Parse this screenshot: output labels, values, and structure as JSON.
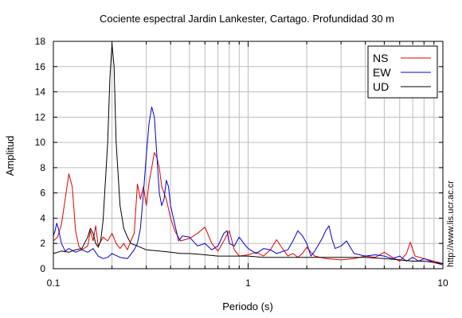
{
  "chart_data": {
    "type": "line",
    "title": "Cociente espectral Jardin Lankester, Cartago. Profundidad 30 m",
    "xlabel": "Periodo (s)",
    "ylabel": "Amplitud",
    "xscale": "log",
    "xlim": [
      0.1,
      10
    ],
    "ylim": [
      0,
      18
    ],
    "x_ticks": [
      0.1,
      1,
      10
    ],
    "x_tick_labels": [
      "0.1",
      "1",
      "10"
    ],
    "y_ticks": [
      0,
      2,
      4,
      6,
      8,
      10,
      12,
      14,
      16,
      18
    ],
    "y_tick_labels": [
      "0",
      "2",
      "4",
      "6",
      "8",
      "10",
      "12",
      "14",
      "16",
      "18"
    ],
    "grid": true,
    "legend_position": "top-right",
    "watermark": "http://www.lis.ucr.ac.cr",
    "series": [
      {
        "name": "NS",
        "color": "#e00000",
        "points": [
          [
            0.1,
            2.2
          ],
          [
            0.105,
            2.5
          ],
          [
            0.11,
            3.5
          ],
          [
            0.115,
            5.5
          ],
          [
            0.12,
            7.5
          ],
          [
            0.125,
            6.5
          ],
          [
            0.13,
            3.0
          ],
          [
            0.135,
            1.8
          ],
          [
            0.14,
            1.5
          ],
          [
            0.15,
            1.8
          ],
          [
            0.155,
            3.0
          ],
          [
            0.16,
            2.2
          ],
          [
            0.165,
            3.4
          ],
          [
            0.17,
            1.8
          ],
          [
            0.18,
            2.5
          ],
          [
            0.19,
            2.2
          ],
          [
            0.2,
            2.8
          ],
          [
            0.21,
            2.0
          ],
          [
            0.22,
            1.6
          ],
          [
            0.23,
            2.0
          ],
          [
            0.24,
            1.5
          ],
          [
            0.25,
            2.2
          ],
          [
            0.26,
            2.8
          ],
          [
            0.27,
            6.7
          ],
          [
            0.28,
            5.5
          ],
          [
            0.29,
            6.5
          ],
          [
            0.3,
            5.0
          ],
          [
            0.31,
            6.8
          ],
          [
            0.32,
            8.0
          ],
          [
            0.33,
            9.2
          ],
          [
            0.34,
            8.8
          ],
          [
            0.35,
            8.0
          ],
          [
            0.36,
            6.5
          ],
          [
            0.38,
            5.5
          ],
          [
            0.4,
            4.0
          ],
          [
            0.42,
            3.0
          ],
          [
            0.45,
            2.2
          ],
          [
            0.5,
            2.4
          ],
          [
            0.55,
            2.8
          ],
          [
            0.6,
            3.3
          ],
          [
            0.65,
            2.0
          ],
          [
            0.7,
            1.4
          ],
          [
            0.75,
            2.2
          ],
          [
            0.8,
            3.0
          ],
          [
            0.85,
            1.5
          ],
          [
            0.9,
            1.0
          ],
          [
            1.0,
            1.1
          ],
          [
            1.1,
            1.3
          ],
          [
            1.2,
            1.0
          ],
          [
            1.3,
            1.5
          ],
          [
            1.4,
            2.3
          ],
          [
            1.5,
            1.6
          ],
          [
            1.6,
            1.0
          ],
          [
            1.7,
            1.2
          ],
          [
            1.8,
            0.9
          ],
          [
            1.9,
            1.2
          ],
          [
            2.0,
            1.7
          ],
          [
            2.1,
            1.3
          ],
          [
            2.2,
            1.0
          ],
          [
            2.5,
            0.8
          ],
          [
            3.0,
            0.7
          ],
          [
            3.5,
            0.8
          ],
          [
            4.0,
            1.0
          ],
          [
            4.5,
            0.9
          ],
          [
            5.0,
            1.3
          ],
          [
            5.5,
            0.9
          ],
          [
            6.0,
            0.6
          ],
          [
            6.5,
            1.2
          ],
          [
            6.8,
            2.1
          ],
          [
            7.2,
            1.0
          ],
          [
            8.0,
            0.8
          ],
          [
            9.0,
            0.6
          ],
          [
            10.0,
            0.4
          ]
        ]
      },
      {
        "name": "EW",
        "color": "#0000cc",
        "points": [
          [
            0.1,
            2.6
          ],
          [
            0.102,
            3.0
          ],
          [
            0.104,
            3.6
          ],
          [
            0.106,
            3.2
          ],
          [
            0.11,
            2.0
          ],
          [
            0.115,
            1.4
          ],
          [
            0.12,
            1.6
          ],
          [
            0.13,
            1.3
          ],
          [
            0.14,
            1.5
          ],
          [
            0.15,
            1.3
          ],
          [
            0.16,
            1.6
          ],
          [
            0.17,
            1.0
          ],
          [
            0.18,
            0.8
          ],
          [
            0.19,
            0.9
          ],
          [
            0.2,
            1.2
          ],
          [
            0.22,
            0.9
          ],
          [
            0.24,
            0.8
          ],
          [
            0.26,
            1.5
          ],
          [
            0.27,
            2.0
          ],
          [
            0.28,
            3.2
          ],
          [
            0.29,
            6.0
          ],
          [
            0.3,
            9.0
          ],
          [
            0.31,
            11.5
          ],
          [
            0.32,
            12.8
          ],
          [
            0.33,
            12.0
          ],
          [
            0.34,
            9.0
          ],
          [
            0.35,
            6.0
          ],
          [
            0.36,
            5.0
          ],
          [
            0.37,
            5.5
          ],
          [
            0.38,
            7.0
          ],
          [
            0.39,
            6.5
          ],
          [
            0.4,
            5.0
          ],
          [
            0.42,
            3.5
          ],
          [
            0.44,
            2.2
          ],
          [
            0.46,
            2.6
          ],
          [
            0.5,
            2.5
          ],
          [
            0.55,
            1.8
          ],
          [
            0.6,
            2.0
          ],
          [
            0.65,
            1.5
          ],
          [
            0.7,
            1.8
          ],
          [
            0.75,
            2.8
          ],
          [
            0.78,
            3.0
          ],
          [
            0.8,
            2.0
          ],
          [
            0.85,
            1.8
          ],
          [
            0.9,
            2.5
          ],
          [
            0.95,
            2.0
          ],
          [
            1.0,
            1.6
          ],
          [
            1.1,
            1.2
          ],
          [
            1.2,
            1.6
          ],
          [
            1.3,
            1.5
          ],
          [
            1.4,
            1.2
          ],
          [
            1.6,
            1.5
          ],
          [
            1.7,
            2.2
          ],
          [
            1.8,
            3.0
          ],
          [
            1.9,
            2.6
          ],
          [
            2.0,
            2.0
          ],
          [
            2.1,
            1.0
          ],
          [
            2.2,
            1.4
          ],
          [
            2.4,
            2.4
          ],
          [
            2.5,
            3.0
          ],
          [
            2.6,
            3.4
          ],
          [
            2.7,
            2.3
          ],
          [
            2.8,
            1.6
          ],
          [
            3.0,
            1.8
          ],
          [
            3.2,
            2.2
          ],
          [
            3.5,
            1.2
          ],
          [
            4.0,
            1.0
          ],
          [
            4.5,
            1.1
          ],
          [
            5.0,
            1.0
          ],
          [
            5.5,
            0.8
          ],
          [
            6.0,
            1.0
          ],
          [
            6.5,
            0.6
          ],
          [
            7.0,
            0.9
          ],
          [
            7.5,
            0.6
          ],
          [
            8.0,
            0.8
          ],
          [
            9.0,
            0.5
          ],
          [
            10.0,
            0.3
          ]
        ]
      },
      {
        "name": "UD",
        "color": "#000000",
        "points": [
          [
            0.1,
            1.2
          ],
          [
            0.11,
            1.4
          ],
          [
            0.12,
            1.3
          ],
          [
            0.13,
            1.5
          ],
          [
            0.14,
            1.6
          ],
          [
            0.15,
            2.5
          ],
          [
            0.155,
            3.2
          ],
          [
            0.16,
            2.8
          ],
          [
            0.165,
            2.0
          ],
          [
            0.17,
            1.7
          ],
          [
            0.175,
            2.2
          ],
          [
            0.18,
            3.8
          ],
          [
            0.19,
            10.0
          ],
          [
            0.195,
            15.0
          ],
          [
            0.2,
            17.8
          ],
          [
            0.205,
            16.0
          ],
          [
            0.21,
            10.0
          ],
          [
            0.22,
            5.0
          ],
          [
            0.23,
            3.2
          ],
          [
            0.24,
            2.5
          ],
          [
            0.25,
            2.0
          ],
          [
            0.27,
            1.8
          ],
          [
            0.3,
            1.5
          ],
          [
            0.35,
            1.4
          ],
          [
            0.4,
            1.3
          ],
          [
            0.45,
            1.2
          ],
          [
            0.5,
            1.2
          ],
          [
            0.6,
            1.1
          ],
          [
            0.7,
            1.0
          ],
          [
            0.8,
            1.0
          ],
          [
            0.9,
            1.0
          ],
          [
            1.0,
            1.0
          ],
          [
            1.2,
            0.9
          ],
          [
            1.5,
            0.9
          ],
          [
            2.0,
            0.9
          ],
          [
            2.5,
            0.9
          ],
          [
            3.0,
            0.9
          ],
          [
            4.0,
            0.9
          ],
          [
            5.0,
            0.8
          ],
          [
            6.0,
            0.7
          ],
          [
            7.0,
            0.6
          ],
          [
            8.0,
            0.6
          ],
          [
            9.0,
            0.5
          ],
          [
            10.0,
            0.4
          ]
        ]
      }
    ]
  }
}
